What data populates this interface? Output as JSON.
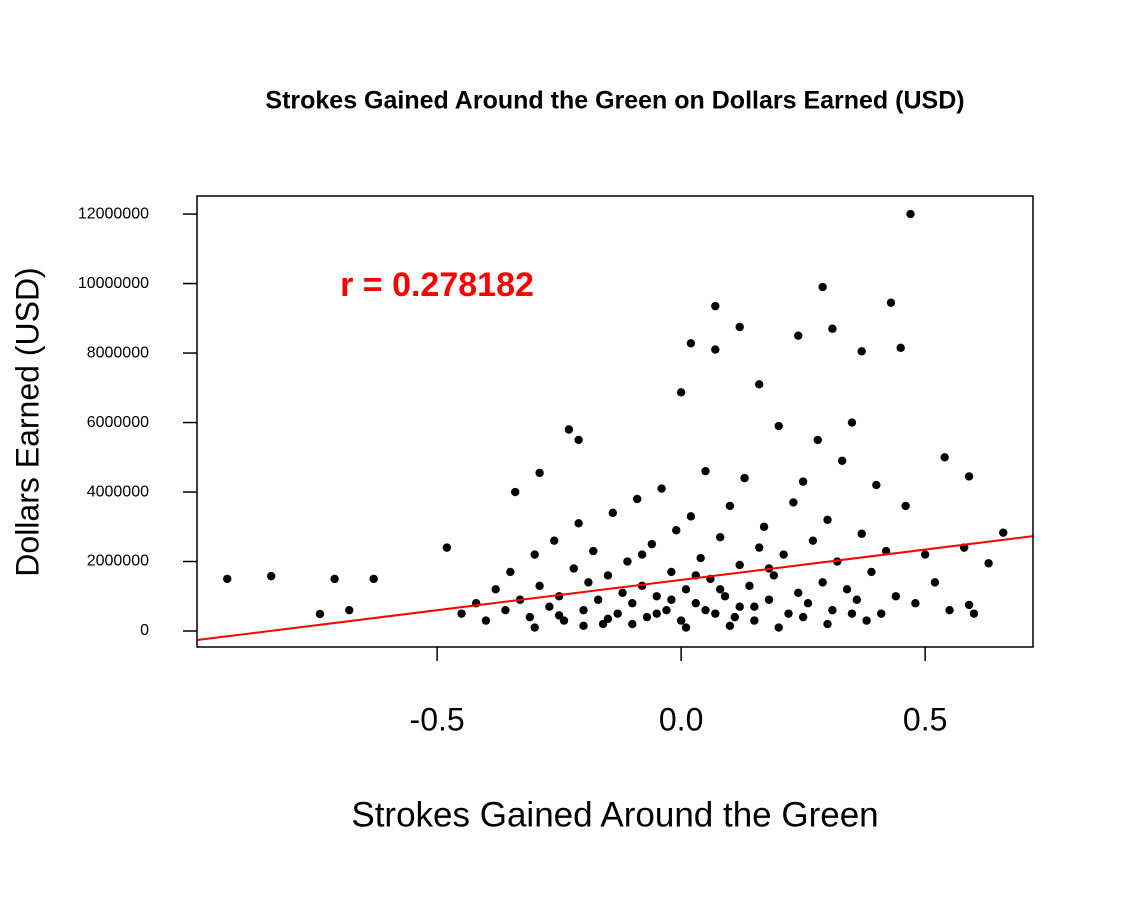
{
  "chart_data": {
    "type": "scatter",
    "title": "Strokes Gained Around the Green on Dollars Earned (USD)",
    "x_label": "Strokes Gained Around the Green",
    "y_label": "Dollars Earned (USD)",
    "annotation": {
      "text": "r = 0.278182",
      "color": "#ff0000"
    },
    "xlim": [
      -0.992,
      0.721
    ],
    "ylim": [
      -460000,
      12520000
    ],
    "xticks": [
      -0.5,
      {
        "value": 0,
        "label": "0.0"
      },
      0.5
    ],
    "yticks": [
      0,
      2000000,
      4000000,
      6000000,
      8000000,
      10000000,
      12000000
    ],
    "color": "#000000",
    "x": [
      -0.93,
      -0.84,
      -0.71,
      -0.74,
      -0.68,
      -0.63,
      0.47,
      0.29,
      0.07,
      0.43,
      0.12,
      0.02,
      0.24,
      0.31,
      0.37,
      0.45,
      0.07,
      0.16,
      0.0,
      -0.23,
      -0.21,
      0.66,
      0.54,
      0.59,
      -0.34,
      -0.29,
      -0.48,
      0.63,
      0.59,
      -0.45,
      -0.42,
      -0.4,
      -0.38,
      -0.36,
      -0.35,
      -0.33,
      -0.31,
      -0.3,
      -0.29,
      -0.27,
      -0.26,
      -0.25,
      -0.24,
      -0.22,
      -0.21,
      -0.2,
      -0.19,
      -0.18,
      -0.17,
      -0.16,
      -0.15,
      -0.14,
      -0.13,
      -0.12,
      -0.11,
      -0.1,
      -0.09,
      -0.08,
      -0.07,
      -0.06,
      -0.05,
      -0.04,
      -0.03,
      -0.02,
      -0.01,
      0.0,
      0.01,
      0.02,
      0.03,
      0.04,
      0.05,
      0.06,
      0.07,
      0.08,
      0.09,
      0.1,
      0.11,
      0.12,
      0.13,
      0.14,
      0.15,
      0.16,
      0.17,
      0.18,
      0.19,
      0.2,
      0.21,
      0.22,
      0.23,
      0.24,
      0.25,
      0.26,
      0.27,
      0.28,
      0.29,
      0.3,
      0.31,
      0.32,
      0.33,
      0.34,
      0.35,
      0.36,
      0.37,
      0.38,
      0.39,
      0.4,
      0.41,
      0.42,
      0.44,
      0.46,
      0.48,
      0.5,
      0.52,
      0.55,
      0.58,
      0.6,
      -0.3,
      -0.2,
      -0.1,
      0.01,
      0.1,
      0.2,
      0.3,
      -0.05,
      0.05,
      0.15,
      0.25,
      0.35,
      -0.15,
      -0.25,
      0.08,
      -0.02,
      0.12,
      0.18,
      -0.08,
      0.03
    ],
    "y": [
      1500000,
      1580000,
      1500000,
      490000,
      600000,
      1500000,
      12000000,
      9900000,
      9350000,
      9450000,
      8750000,
      8280000,
      8500000,
      8700000,
      8050000,
      8150000,
      8100000,
      7100000,
      6870000,
      5800000,
      5500000,
      2830000,
      5000000,
      4450000,
      4000000,
      4550000,
      2400000,
      1950000,
      750000,
      500000,
      800000,
      300000,
      1200000,
      600000,
      1700000,
      900000,
      400000,
      2200000,
      1300000,
      700000,
      2600000,
      1000000,
      300000,
      1800000,
      3100000,
      600000,
      1400000,
      2300000,
      900000,
      200000,
      1600000,
      3400000,
      500000,
      1100000,
      2000000,
      800000,
      3800000,
      1300000,
      400000,
      2500000,
      1000000,
      4100000,
      600000,
      1700000,
      2900000,
      300000,
      1200000,
      3300000,
      800000,
      2100000,
      4600000,
      1500000,
      500000,
      2700000,
      1000000,
      3600000,
      400000,
      1900000,
      4400000,
      1300000,
      700000,
      2400000,
      3000000,
      900000,
      1600000,
      5900000,
      2200000,
      500000,
      3700000,
      1100000,
      4300000,
      800000,
      2600000,
      5500000,
      1400000,
      3200000,
      600000,
      2000000,
      4900000,
      1200000,
      6000000,
      900000,
      2800000,
      300000,
      1700000,
      4200000,
      500000,
      2300000,
      1000000,
      3600000,
      800000,
      2200000,
      1400000,
      600000,
      2400000,
      500000,
      100000,
      150000,
      200000,
      100000,
      150000,
      100000,
      200000,
      500000,
      600000,
      300000,
      400000,
      500000,
      350000,
      450000,
      1200000,
      900000,
      700000,
      1800000,
      2200000,
      1600000
    ],
    "fit": {
      "x": [
        -0.992,
        0.721
      ],
      "y": [
        -260000,
        2730000
      ],
      "color": "#ff0000"
    }
  }
}
